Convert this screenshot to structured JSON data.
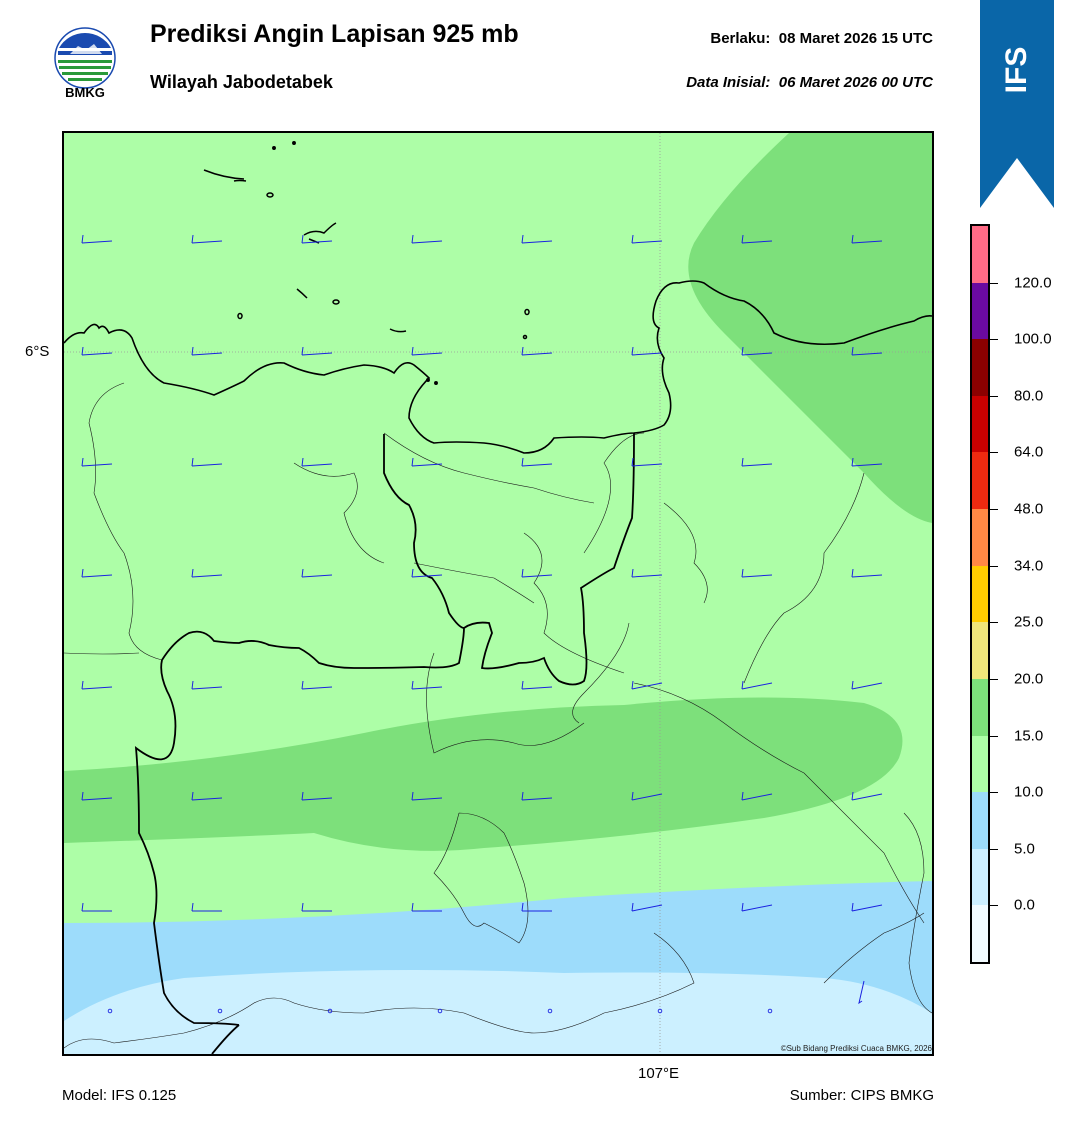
{
  "header": {
    "title": "Prediksi Angin Lapisan 925 mb",
    "subtitle": "Wilayah Jabodetabek",
    "valid_label": "Berlaku:",
    "valid_time": "08 Maret 2026 15 UTC",
    "init_label": "Data Inisial:",
    "init_time": "06 Maret 2026 00 UTC"
  },
  "logo": {
    "text": "BMKG",
    "icon": "bmkg-logo"
  },
  "ribbon": {
    "text": "IFS",
    "color": "#0a66a8"
  },
  "map": {
    "lat_label": "6°S",
    "lon_label": "107°E",
    "credit": "©Sub Bidang Prediksi Cuaca BMKG, 2026",
    "colors": {
      "band_0_5": "#ccf0ff",
      "band_5_10": "#9ddcfb",
      "band_10_15": "#adfea7",
      "band_15_20": "#7de07b",
      "barb": "#1a22e0",
      "coast": "#000000"
    }
  },
  "colorbar": {
    "levels": [
      "0.0",
      "5.0",
      "10.0",
      "15.0",
      "20.0",
      "25.0",
      "34.0",
      "48.0",
      "64.0",
      "80.0",
      "100.0",
      "120.0"
    ],
    "colors": [
      "#f2fbff",
      "#cdefff",
      "#9ddcfb",
      "#adfea7",
      "#7de07b",
      "#f0e67a",
      "#ffcc00",
      "#ff8844",
      "#ee2a10",
      "#c80000",
      "#8b0000",
      "#6a0aa0",
      "#ff6b86"
    ]
  },
  "footer": {
    "model": "Model: IFS 0.125",
    "source": "Sumber: CIPS BMKG"
  }
}
